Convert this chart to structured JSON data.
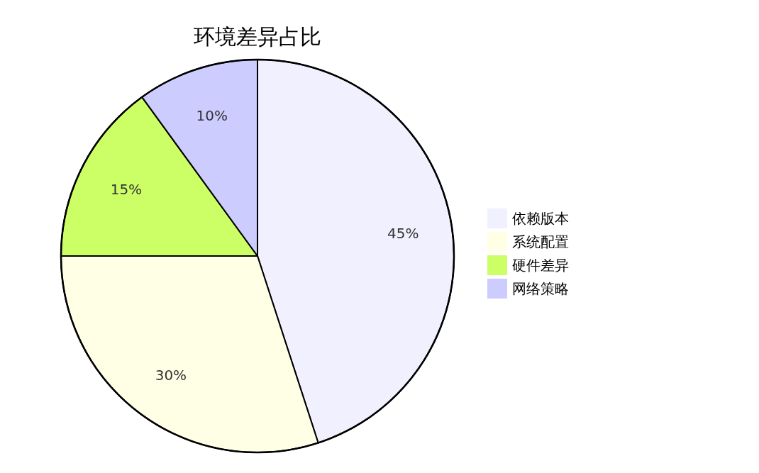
{
  "chart_data": {
    "type": "pie",
    "title": "环境差异占比",
    "categories": [
      "依赖版本",
      "系统配置",
      "硬件差异",
      "网络策略"
    ],
    "values": [
      45,
      30,
      15,
      10
    ],
    "value_labels": [
      "45%",
      "30%",
      "15%",
      "10%"
    ],
    "colors": [
      "#f0f0fe",
      "#ffffe6",
      "#ccff66",
      "#ccccff"
    ],
    "legend": "right"
  }
}
